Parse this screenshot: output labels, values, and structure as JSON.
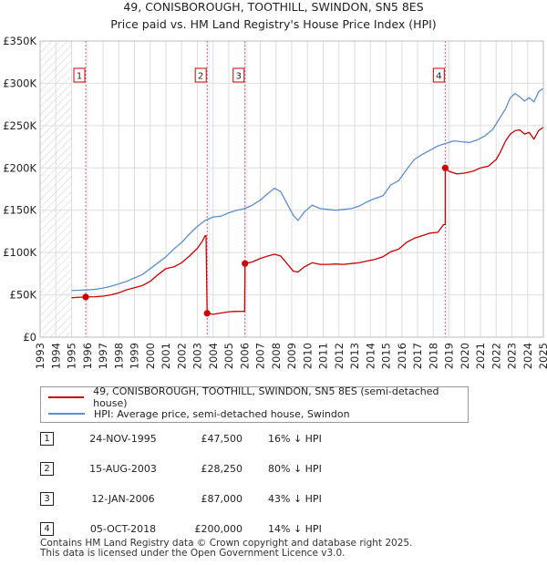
{
  "colors": {
    "property": "#cc0000",
    "hpi": "#5b8fd0",
    "grid": "#dddddd",
    "hatch": "#cccccc",
    "band": "#eef2fb",
    "vline": "#e06060"
  },
  "chart_data": {
    "type": "line",
    "title": "49, CONISBOROUGH, TOOTHILL, SWINDON, SN5 8ES",
    "subtitle": "Price paid vs. HM Land Registry's House Price Index (HPI)",
    "xlim": [
      1993,
      2025
    ],
    "ylim": [
      0,
      350000
    ],
    "x_ticks": [
      1993,
      1994,
      1995,
      1996,
      1997,
      1998,
      1999,
      2000,
      2001,
      2002,
      2003,
      2004,
      2005,
      2006,
      2007,
      2008,
      2009,
      2010,
      2011,
      2012,
      2013,
      2014,
      2015,
      2016,
      2017,
      2018,
      2019,
      2020,
      2021,
      2022,
      2023,
      2024,
      2025
    ],
    "x_tick_labels": [
      "1993",
      "1994",
      "1995",
      "1996",
      "1997",
      "1998",
      "1999",
      "2000",
      "2001",
      "2002",
      "2003",
      "2004",
      "2005",
      "2006",
      "2007",
      "2008",
      "2009",
      "2010",
      "2011",
      "2012",
      "2013",
      "2014",
      "2015",
      "2016",
      "2017",
      "2018",
      "2019",
      "2020",
      "2021",
      "2022",
      "2023",
      "2024",
      "2025"
    ],
    "y_ticks": [
      0,
      50000,
      100000,
      150000,
      200000,
      250000,
      300000,
      350000
    ],
    "y_tick_labels": [
      "£0",
      "£50K",
      "£100K",
      "£150K",
      "£200K",
      "£250K",
      "£300K",
      "£350K"
    ],
    "hatched_range_before": 1995.0,
    "series": [
      {
        "name": "49, CONISBOROUGH, TOOTHILL, SWINDON, SN5 8ES (semi-detached house)",
        "color_key": "property",
        "points": [
          [
            1995.0,
            46500
          ],
          [
            1995.3,
            47000
          ],
          [
            1995.9,
            47500
          ],
          [
            1996.5,
            47800
          ],
          [
            1997.0,
            48500
          ],
          [
            1997.5,
            50000
          ],
          [
            1998.0,
            52500
          ],
          [
            1998.5,
            56000
          ],
          [
            1999.0,
            58500
          ],
          [
            1999.5,
            61000
          ],
          [
            2000.0,
            66000
          ],
          [
            2000.5,
            74000
          ],
          [
            2001.0,
            81000
          ],
          [
            2001.5,
            83000
          ],
          [
            2002.0,
            88000
          ],
          [
            2002.5,
            96000
          ],
          [
            2003.0,
            105000
          ],
          [
            2003.3,
            113000
          ],
          [
            2003.5,
            120000
          ],
          [
            2003.55,
            120000
          ],
          [
            2003.62,
            28250
          ],
          [
            2004.0,
            27000
          ],
          [
            2004.5,
            28500
          ],
          [
            2005.0,
            30000
          ],
          [
            2005.5,
            30500
          ],
          [
            2006.0,
            30500
          ],
          [
            2006.03,
            87000
          ],
          [
            2006.5,
            89000
          ],
          [
            2007.0,
            93000
          ],
          [
            2007.5,
            96000
          ],
          [
            2007.9,
            98000
          ],
          [
            2008.3,
            96000
          ],
          [
            2008.7,
            87000
          ],
          [
            2009.1,
            78000
          ],
          [
            2009.4,
            77000
          ],
          [
            2009.8,
            83000
          ],
          [
            2010.3,
            88000
          ],
          [
            2010.8,
            86000
          ],
          [
            2011.3,
            86000
          ],
          [
            2011.8,
            86500
          ],
          [
            2012.3,
            86000
          ],
          [
            2012.8,
            87000
          ],
          [
            2013.3,
            88000
          ],
          [
            2013.8,
            90000
          ],
          [
            2014.3,
            92000
          ],
          [
            2014.8,
            95000
          ],
          [
            2015.3,
            101000
          ],
          [
            2015.8,
            104000
          ],
          [
            2016.3,
            112000
          ],
          [
            2016.8,
            117000
          ],
          [
            2017.3,
            120000
          ],
          [
            2017.8,
            123000
          ],
          [
            2018.3,
            124000
          ],
          [
            2018.65,
            133000
          ],
          [
            2018.76,
            133000
          ],
          [
            2018.76,
            200000
          ],
          [
            2019.0,
            196000
          ],
          [
            2019.5,
            193000
          ],
          [
            2020.0,
            194000
          ],
          [
            2020.5,
            196000
          ],
          [
            2021.0,
            200000
          ],
          [
            2021.5,
            202000
          ],
          [
            2022.0,
            210000
          ],
          [
            2022.3,
            220000
          ],
          [
            2022.6,
            232000
          ],
          [
            2022.9,
            240000
          ],
          [
            2023.2,
            244000
          ],
          [
            2023.5,
            245000
          ],
          [
            2023.8,
            240000
          ],
          [
            2024.1,
            242000
          ],
          [
            2024.4,
            234000
          ],
          [
            2024.7,
            244000
          ],
          [
            2025.0,
            248000
          ]
        ]
      },
      {
        "name": "HPI: Average price, semi-detached house, Swindon",
        "color_key": "hpi",
        "points": [
          [
            1995.0,
            55000
          ],
          [
            1995.5,
            55500
          ],
          [
            1996.0,
            55800
          ],
          [
            1996.5,
            56500
          ],
          [
            1997.0,
            58000
          ],
          [
            1997.5,
            60000
          ],
          [
            1998.0,
            63000
          ],
          [
            1998.5,
            66000
          ],
          [
            1999.0,
            70000
          ],
          [
            1999.5,
            74000
          ],
          [
            2000.0,
            81000
          ],
          [
            2000.5,
            88000
          ],
          [
            2001.0,
            95000
          ],
          [
            2001.5,
            104000
          ],
          [
            2002.0,
            112000
          ],
          [
            2002.5,
            122000
          ],
          [
            2003.0,
            131000
          ],
          [
            2003.5,
            138000
          ],
          [
            2004.0,
            142000
          ],
          [
            2004.5,
            143000
          ],
          [
            2005.0,
            147000
          ],
          [
            2005.5,
            150000
          ],
          [
            2006.0,
            152000
          ],
          [
            2006.5,
            156000
          ],
          [
            2007.0,
            162000
          ],
          [
            2007.5,
            170000
          ],
          [
            2007.9,
            176000
          ],
          [
            2008.3,
            172000
          ],
          [
            2008.7,
            158000
          ],
          [
            2009.1,
            144000
          ],
          [
            2009.4,
            138000
          ],
          [
            2009.8,
            148000
          ],
          [
            2010.3,
            156000
          ],
          [
            2010.8,
            152000
          ],
          [
            2011.3,
            151000
          ],
          [
            2011.8,
            150000
          ],
          [
            2012.3,
            151000
          ],
          [
            2012.8,
            152000
          ],
          [
            2013.3,
            155000
          ],
          [
            2013.8,
            160000
          ],
          [
            2014.3,
            164000
          ],
          [
            2014.8,
            167000
          ],
          [
            2015.3,
            180000
          ],
          [
            2015.8,
            185000
          ],
          [
            2016.3,
            198000
          ],
          [
            2016.8,
            210000
          ],
          [
            2017.3,
            216000
          ],
          [
            2017.8,
            221000
          ],
          [
            2018.3,
            226000
          ],
          [
            2018.8,
            229000
          ],
          [
            2019.3,
            232000
          ],
          [
            2019.8,
            231000
          ],
          [
            2020.3,
            230000
          ],
          [
            2020.8,
            233000
          ],
          [
            2021.3,
            238000
          ],
          [
            2021.8,
            246000
          ],
          [
            2022.2,
            258000
          ],
          [
            2022.6,
            270000
          ],
          [
            2022.9,
            283000
          ],
          [
            2023.2,
            288000
          ],
          [
            2023.5,
            284000
          ],
          [
            2023.8,
            279000
          ],
          [
            2024.1,
            283000
          ],
          [
            2024.4,
            278000
          ],
          [
            2024.7,
            290000
          ],
          [
            2025.0,
            294000
          ]
        ]
      }
    ],
    "sales": [
      {
        "label": "1",
        "x": 1995.9,
        "value": 47500
      },
      {
        "label": "2",
        "x": 2003.62,
        "value": 28250
      },
      {
        "label": "3",
        "x": 2006.03,
        "value": 87000
      },
      {
        "label": "4",
        "x": 2018.76,
        "value": 200000
      }
    ]
  },
  "legend": {
    "property_label": "49, CONISBOROUGH, TOOTHILL, SWINDON, SN5 8ES (semi-detached house)",
    "hpi_label": "HPI: Average price, semi-detached house, Swindon"
  },
  "sales_table": [
    {
      "num": "1",
      "date": "24-NOV-1995",
      "price": "£47,500",
      "hpi": "16% ↓ HPI"
    },
    {
      "num": "2",
      "date": "15-AUG-2003",
      "price": "£28,250",
      "hpi": "80% ↓ HPI"
    },
    {
      "num": "3",
      "date": "12-JAN-2006",
      "price": "£87,000",
      "hpi": "43% ↓ HPI"
    },
    {
      "num": "4",
      "date": "05-OCT-2018",
      "price": "£200,000",
      "hpi": "14% ↓ HPI"
    }
  ],
  "footer": {
    "line1": "Contains HM Land Registry data © Crown copyright and database right 2025.",
    "line2": "This data is licensed under the Open Government Licence v3.0."
  }
}
